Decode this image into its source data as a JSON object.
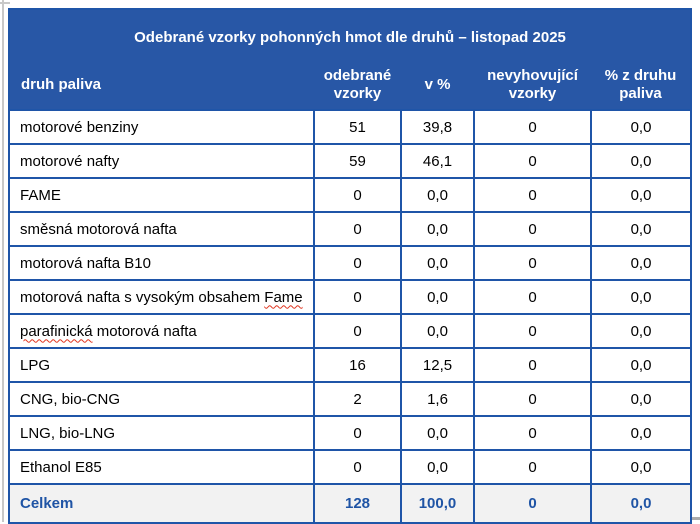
{
  "table": {
    "title": "Odebrané vzorky pohonných hmot dle druhů – listopad 2025",
    "columns": [
      {
        "label": "druh paliva"
      },
      {
        "label": "odebrané vzorky"
      },
      {
        "label": "v %"
      },
      {
        "label": "nevyhovující vzorky"
      },
      {
        "label": "% z druhu paliva"
      }
    ],
    "rows": [
      {
        "label": "motorové benziny",
        "values": [
          "51",
          "39,8",
          "0",
          "0,0"
        ]
      },
      {
        "label": "motorové nafty",
        "values": [
          "59",
          "46,1",
          "0",
          "0,0"
        ]
      },
      {
        "label": "FAME",
        "values": [
          "0",
          "0,0",
          "0",
          "0,0"
        ]
      },
      {
        "label": "směsná motorová nafta",
        "values": [
          "0",
          "0,0",
          "0",
          "0,0"
        ]
      },
      {
        "label": "motorová nafta B10",
        "values": [
          "0",
          "0,0",
          "0",
          "0,0"
        ]
      },
      {
        "label": "motorová nafta s vysokým obsahem Fame",
        "misspelled": "Fame",
        "values": [
          "0",
          "0,0",
          "0",
          "0,0"
        ]
      },
      {
        "label": "parafinická motorová nafta",
        "misspelled": "parafinická",
        "values": [
          "0",
          "0,0",
          "0",
          "0,0"
        ]
      },
      {
        "label": "LPG",
        "values": [
          "16",
          "12,5",
          "0",
          "0,0"
        ]
      },
      {
        "label": "CNG, bio-CNG",
        "values": [
          "2",
          "1,6",
          "0",
          "0,0"
        ]
      },
      {
        "label": "LNG, bio-LNG",
        "values": [
          "0",
          "0,0",
          "0",
          "0,0"
        ]
      },
      {
        "label": "Ethanol E85",
        "values": [
          "0",
          "0,0",
          "0",
          "0,0"
        ]
      },
      {
        "label": "Celkem",
        "total": true,
        "values": [
          "128",
          "100,0",
          "0",
          "0,0"
        ]
      }
    ],
    "colors": {
      "header_bg": "#2857a6",
      "border": "#1f55a8",
      "total_bg": "#f2f2f2",
      "total_text": "#1f54a5",
      "squiggle": "#e0341f"
    }
  }
}
